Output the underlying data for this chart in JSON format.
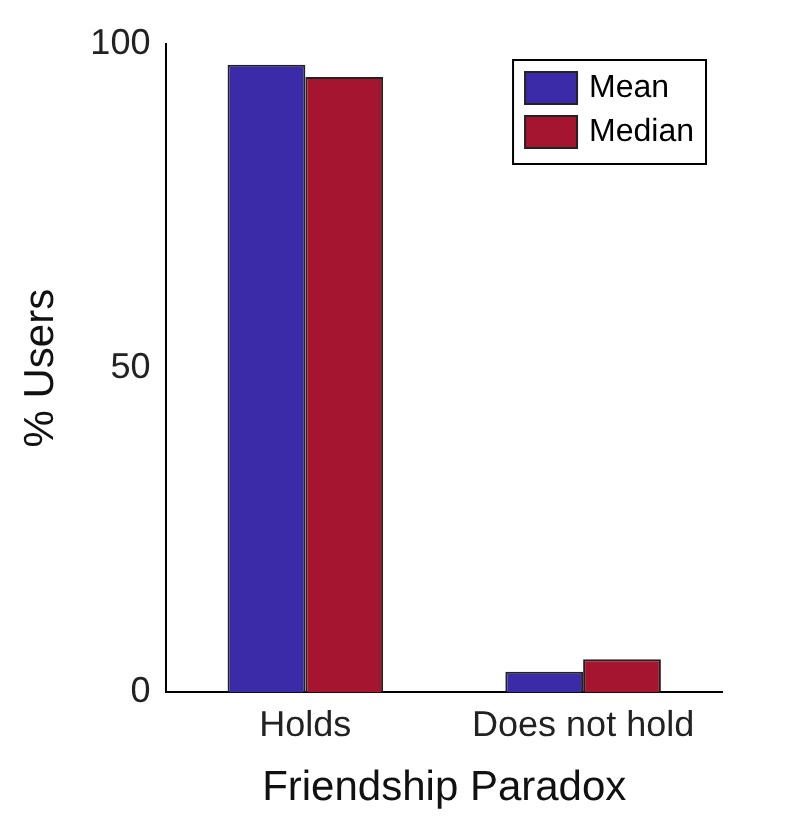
{
  "chart_data": {
    "type": "bar",
    "xlabel": "Friendship Paradox",
    "ylabel": "% Users",
    "categories": [
      "Holds",
      "Does not hold"
    ],
    "series": [
      {
        "name": "Mean",
        "color": "#3b2ba8",
        "values": [
          96.8,
          3.2
        ]
      },
      {
        "name": "Median",
        "color": "#a5152f",
        "values": [
          94.9,
          5.1
        ]
      }
    ],
    "ylim": [
      0,
      100
    ],
    "yticks": [
      0,
      50,
      100
    ],
    "grid": false,
    "legend": "top right"
  }
}
